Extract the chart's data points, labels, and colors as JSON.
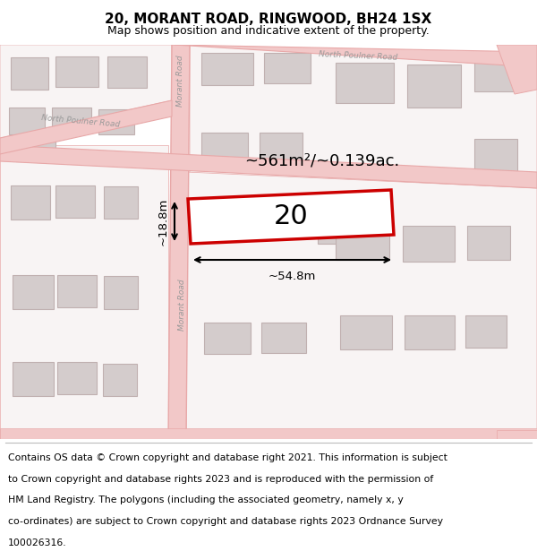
{
  "title": "20, MORANT ROAD, RINGWOOD, BH24 1SX",
  "subtitle": "Map shows position and indicative extent of the property.",
  "footer_lines": [
    "Contains OS data © Crown copyright and database right 2021. This information is subject",
    "to Crown copyright and database rights 2023 and is reproduced with the permission of",
    "HM Land Registry. The polygons (including the associated geometry, namely x, y",
    "co-ordinates) are subject to Crown copyright and database rights 2023 Ordnance Survey",
    "100026316."
  ],
  "map_bg": "#f7f2f2",
  "road_color": "#f2c8c8",
  "road_outline": "#e8a8a8",
  "building_fill": "#d4cccc",
  "building_outline": "#c0b0b0",
  "white_fill": "#f8f4f4",
  "plot_color": "#cc0000",
  "plot_fill": "#ffffff",
  "title_fontsize": 11,
  "subtitle_fontsize": 9,
  "footer_fontsize": 7.8,
  "area_text": "~561m²/~0.139ac.",
  "width_text": "~54.8m",
  "height_text": "~18.8m",
  "number_text": "20",
  "road_label_morant_top": "Morant Road",
  "road_label_morant_bot": "Morant Road",
  "road_label_north_left": "North Poulner Road",
  "road_label_north_right": "North Poulner Road"
}
